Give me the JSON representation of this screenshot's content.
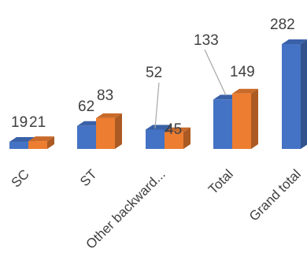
{
  "chart_data": {
    "type": "bar",
    "style": "3d-clustered-column",
    "categories": [
      "SC",
      "ST",
      "Other backward...",
      "Total",
      "Grand total"
    ],
    "series": [
      {
        "values": [
          19,
          62,
          52,
          133,
          282
        ],
        "color": "#4472C4"
      },
      {
        "values": [
          21,
          83,
          45,
          149,
          null
        ],
        "color": "#ED7D31"
      }
    ],
    "data_labels": [
      [
        "19",
        "62",
        "52",
        "133",
        "282"
      ],
      [
        "21",
        "83",
        "45",
        "149",
        ""
      ]
    ],
    "gridlines": false,
    "legend": "none"
  }
}
